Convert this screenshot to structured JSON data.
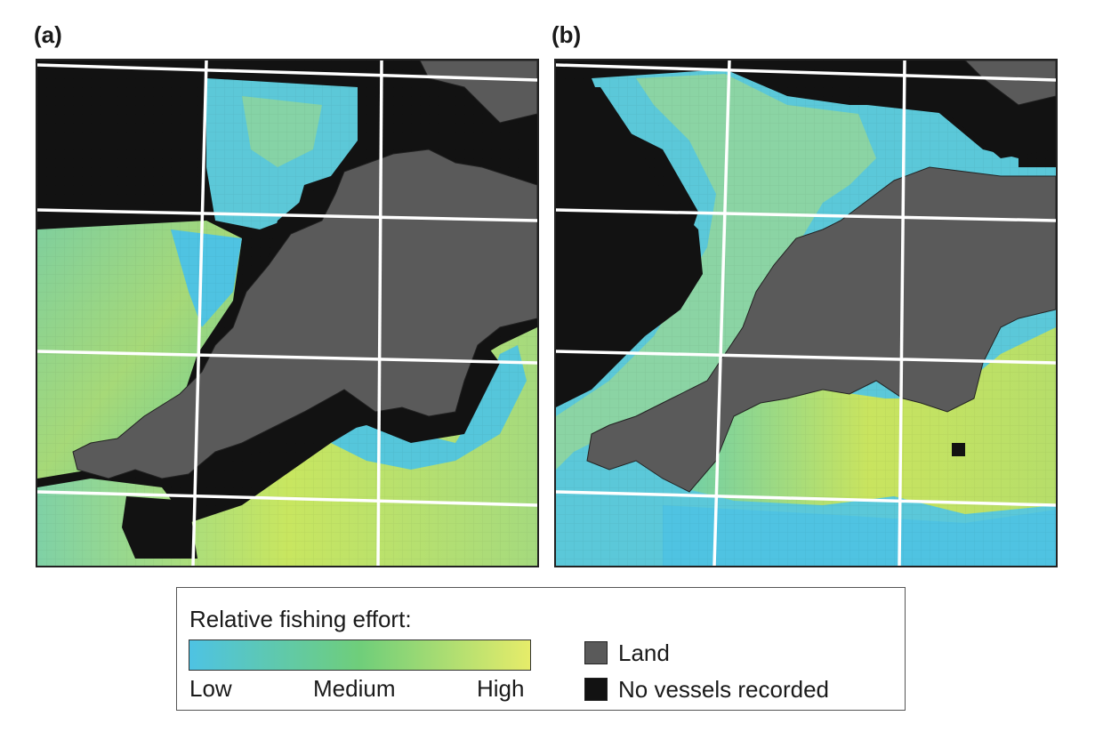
{
  "panels": [
    {
      "label": "(a)"
    },
    {
      "label": "(b)"
    }
  ],
  "legend": {
    "title": "Relative fishing effort:",
    "scale": {
      "low_label": "Low",
      "medium_label": "Medium",
      "high_label": "High",
      "colors": {
        "low": "#4ec3e3",
        "medium": "#6fce7a",
        "high": "#e6ec6a"
      }
    },
    "categories": [
      {
        "label": "Land",
        "color": "#5a5a5a"
      },
      {
        "label": "No vessels recorded",
        "color": "#121212"
      }
    ]
  },
  "colors": {
    "land": "#5a5a5a",
    "no_vessels": "#121212",
    "grid_lines": "#ffffff"
  }
}
